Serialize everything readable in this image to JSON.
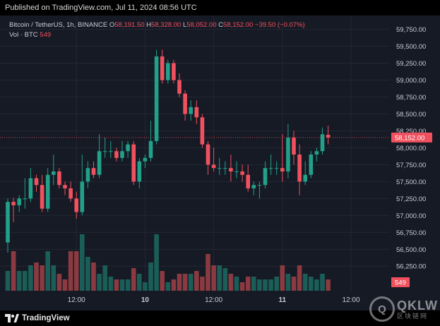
{
  "header": {
    "published_text": "Published on TradingView.com, Jul 11, 2024 08:56 UTC"
  },
  "legend": {
    "symbol": "Bitcoin / TetherUS, 1h, BINANCE",
    "open_label": "O",
    "open_value": "58,191.50",
    "high_label": "H",
    "high_value": "58,328.00",
    "low_label": "L",
    "low_value": "58,052.00",
    "close_label": "C",
    "close_value": "58,152.00",
    "change": "−39.50 (−0.07%)",
    "volume_label": "Vol · BTC",
    "volume_value": "549"
  },
  "footer": {
    "brand": "TradingView"
  },
  "watermark": {
    "letters": "QKLW",
    "logo_glyph": "Q",
    "subtitle": "区块链网"
  },
  "colors": {
    "up": "#22a08a",
    "down": "#f0515e",
    "up_volume": "#1b5e58",
    "down_volume": "#8a3a40",
    "background": "#161a25",
    "grid": "#232734",
    "axis_text": "#c9ccd4"
  },
  "chart_data": {
    "type": "candlestick",
    "symbol": "Bitcoin / TetherUS",
    "interval": "1h",
    "exchange": "BINANCE",
    "y_axis": {
      "range": [
        55950,
        59850
      ],
      "ticks": [
        "59,750.00",
        "59,500.00",
        "59,250.00",
        "59,000.00",
        "58,750.00",
        "58,500.00",
        "58,250.00",
        "58,000.00",
        "57,750.00",
        "57,500.00",
        "57,250.00",
        "57,000.00",
        "56,750.00",
        "56,500.00",
        "56,250.00"
      ],
      "tick_values": [
        59750,
        59500,
        59250,
        59000,
        58750,
        58500,
        58250,
        58000,
        57750,
        57500,
        57250,
        57000,
        56750,
        56500,
        56250
      ]
    },
    "x_axis": {
      "ticks": [
        {
          "label": "12:00",
          "index": 12,
          "bold": false
        },
        {
          "label": "10",
          "index": 24,
          "bold": true
        },
        {
          "label": "12:00",
          "index": 36,
          "bold": false
        },
        {
          "label": "11",
          "index": 48,
          "bold": true
        },
        {
          "label": "12:00",
          "index": 60,
          "bold": false
        }
      ]
    },
    "last_price": {
      "label": "58,152.00",
      "value": 58152
    },
    "last_volume": {
      "label": "549"
    },
    "candles": [
      {
        "o": 56600,
        "h": 57250,
        "l": 56450,
        "c": 57200,
        "v": 0.35
      },
      {
        "o": 57200,
        "h": 57260,
        "l": 56900,
        "c": 57150,
        "v": 0.7
      },
      {
        "o": 57150,
        "h": 57300,
        "l": 57050,
        "c": 57250,
        "v": 0.35
      },
      {
        "o": 57250,
        "h": 57550,
        "l": 57100,
        "c": 57250,
        "v": 0.35
      },
      {
        "o": 57250,
        "h": 57700,
        "l": 57200,
        "c": 57550,
        "v": 0.45
      },
      {
        "o": 57550,
        "h": 57600,
        "l": 57350,
        "c": 57450,
        "v": 0.5
      },
      {
        "o": 57450,
        "h": 57600,
        "l": 57050,
        "c": 57100,
        "v": 0.45
      },
      {
        "o": 57100,
        "h": 57700,
        "l": 57050,
        "c": 57600,
        "v": 0.7
      },
      {
        "o": 57600,
        "h": 57900,
        "l": 57450,
        "c": 57650,
        "v": 0.45
      },
      {
        "o": 57650,
        "h": 57700,
        "l": 57400,
        "c": 57450,
        "v": 0.3
      },
      {
        "o": 57450,
        "h": 57500,
        "l": 57300,
        "c": 57400,
        "v": 0.2
      },
      {
        "o": 57400,
        "h": 57500,
        "l": 57200,
        "c": 57250,
        "v": 0.7
      },
      {
        "o": 57250,
        "h": 57350,
        "l": 56950,
        "c": 57050,
        "v": 0.7
      },
      {
        "o": 57050,
        "h": 57900,
        "l": 57000,
        "c": 57500,
        "v": 1.0
      },
      {
        "o": 57500,
        "h": 57800,
        "l": 57400,
        "c": 57700,
        "v": 0.6
      },
      {
        "o": 57700,
        "h": 57800,
        "l": 57550,
        "c": 57600,
        "v": 0.5
      },
      {
        "o": 57600,
        "h": 58200,
        "l": 57550,
        "c": 57950,
        "v": 0.3
      },
      {
        "o": 57950,
        "h": 58150,
        "l": 57850,
        "c": 57950,
        "v": 0.45
      },
      {
        "o": 57950,
        "h": 58100,
        "l": 57850,
        "c": 57950,
        "v": 0.25
      },
      {
        "o": 57950,
        "h": 58000,
        "l": 57800,
        "c": 57850,
        "v": 0.2
      },
      {
        "o": 57850,
        "h": 58100,
        "l": 57800,
        "c": 57950,
        "v": 0.2
      },
      {
        "o": 57950,
        "h": 58100,
        "l": 57850,
        "c": 58050,
        "v": 0.2
      },
      {
        "o": 58050,
        "h": 58100,
        "l": 57450,
        "c": 57500,
        "v": 0.4
      },
      {
        "o": 57500,
        "h": 57850,
        "l": 57400,
        "c": 57800,
        "v": 0.3
      },
      {
        "o": 57800,
        "h": 57900,
        "l": 57700,
        "c": 57850,
        "v": 0.15
      },
      {
        "o": 57850,
        "h": 58400,
        "l": 57800,
        "c": 58100,
        "v": 0.5
      },
      {
        "o": 58100,
        "h": 59450,
        "l": 58050,
        "c": 59350,
        "v": 1.0
      },
      {
        "o": 59350,
        "h": 59450,
        "l": 58950,
        "c": 59000,
        "v": 0.35
      },
      {
        "o": 59000,
        "h": 59300,
        "l": 58950,
        "c": 59250,
        "v": 0.15
      },
      {
        "o": 59250,
        "h": 59300,
        "l": 58950,
        "c": 59000,
        "v": 0.2
      },
      {
        "o": 59000,
        "h": 59100,
        "l": 58750,
        "c": 58800,
        "v": 0.3
      },
      {
        "o": 58800,
        "h": 58850,
        "l": 58400,
        "c": 58500,
        "v": 0.3
      },
      {
        "o": 58500,
        "h": 58700,
        "l": 58400,
        "c": 58600,
        "v": 0.3
      },
      {
        "o": 58600,
        "h": 58700,
        "l": 58350,
        "c": 58450,
        "v": 0.35
      },
      {
        "o": 58450,
        "h": 58500,
        "l": 58000,
        "c": 58050,
        "v": 0.25
      },
      {
        "o": 58050,
        "h": 58100,
        "l": 57600,
        "c": 57750,
        "v": 0.65
      },
      {
        "o": 57750,
        "h": 58000,
        "l": 57650,
        "c": 57700,
        "v": 0.45
      },
      {
        "o": 57700,
        "h": 57850,
        "l": 57600,
        "c": 57700,
        "v": 0.45
      },
      {
        "o": 57700,
        "h": 57800,
        "l": 57600,
        "c": 57700,
        "v": 0.4
      },
      {
        "o": 57700,
        "h": 57900,
        "l": 57500,
        "c": 57650,
        "v": 0.3
      },
      {
        "o": 57650,
        "h": 57800,
        "l": 57550,
        "c": 57650,
        "v": 0.25
      },
      {
        "o": 57650,
        "h": 57750,
        "l": 57500,
        "c": 57600,
        "v": 0.15
      },
      {
        "o": 57600,
        "h": 57750,
        "l": 57350,
        "c": 57400,
        "v": 0.25
      },
      {
        "o": 57400,
        "h": 57500,
        "l": 57300,
        "c": 57450,
        "v": 0.25
      },
      {
        "o": 57450,
        "h": 57500,
        "l": 57250,
        "c": 57450,
        "v": 0.2
      },
      {
        "o": 57450,
        "h": 57800,
        "l": 57400,
        "c": 57700,
        "v": 0.2
      },
      {
        "o": 57700,
        "h": 57900,
        "l": 57600,
        "c": 57700,
        "v": 0.2
      },
      {
        "o": 57700,
        "h": 57800,
        "l": 57600,
        "c": 57700,
        "v": 0.25
      },
      {
        "o": 57700,
        "h": 58200,
        "l": 57500,
        "c": 57650,
        "v": 0.45
      },
      {
        "o": 57650,
        "h": 58350,
        "l": 57550,
        "c": 58150,
        "v": 0.3
      },
      {
        "o": 58150,
        "h": 58250,
        "l": 57750,
        "c": 57900,
        "v": 0.25
      },
      {
        "o": 57900,
        "h": 58050,
        "l": 57300,
        "c": 57500,
        "v": 0.45
      },
      {
        "o": 57500,
        "h": 57800,
        "l": 57450,
        "c": 57600,
        "v": 0.3
      },
      {
        "o": 57600,
        "h": 57950,
        "l": 57550,
        "c": 57900,
        "v": 0.25
      },
      {
        "o": 57900,
        "h": 58000,
        "l": 57800,
        "c": 57950,
        "v": 0.2
      },
      {
        "o": 57950,
        "h": 58300,
        "l": 57900,
        "c": 58200,
        "v": 0.3
      },
      {
        "o": 58191.5,
        "h": 58328,
        "l": 58052,
        "c": 58152,
        "v": 0.2
      }
    ]
  }
}
